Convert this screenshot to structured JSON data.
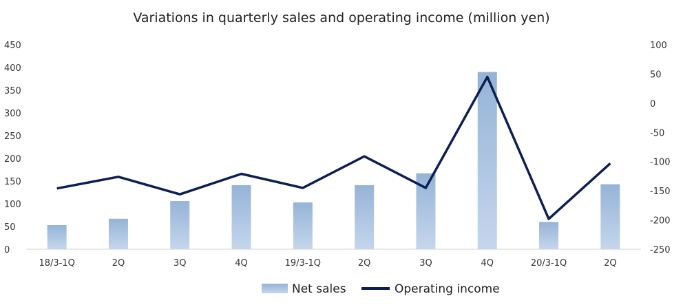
{
  "chart_data": {
    "type": "bar+line",
    "title": "Variations in quarterly sales and operating income (million yen)",
    "categories": [
      "18/3-1Q",
      "2Q",
      "3Q",
      "4Q",
      "19/3-1Q",
      "2Q",
      "3Q",
      "4Q",
      "20/3-1Q",
      "2Q"
    ],
    "series": [
      {
        "name": "Net sales",
        "type": "bar",
        "axis": "left",
        "values": [
          53,
          67,
          106,
          141,
          103,
          141,
          167,
          390,
          60,
          143
        ]
      },
      {
        "name": "Operating income",
        "type": "line",
        "axis": "right",
        "values": [
          -146,
          -126,
          -156,
          -121,
          -145,
          -91,
          -145,
          45,
          -198,
          -103
        ]
      }
    ],
    "y_left": {
      "min": 0,
      "max": 450,
      "ticks": [
        0,
        50,
        100,
        150,
        200,
        250,
        300,
        350,
        400,
        450
      ]
    },
    "y_right": {
      "min": -250,
      "max": 100,
      "ticks": [
        100,
        50,
        0,
        -50,
        -100,
        -150,
        -200,
        -250
      ],
      "negative_color": "#ff0000"
    },
    "legend": {
      "position": "bottom-center"
    },
    "grid": false,
    "colors": {
      "bar_top": "#95b3d7",
      "bar_bottom": "#c5d6ec",
      "line": "#0c1e52",
      "text": "#333333"
    }
  }
}
